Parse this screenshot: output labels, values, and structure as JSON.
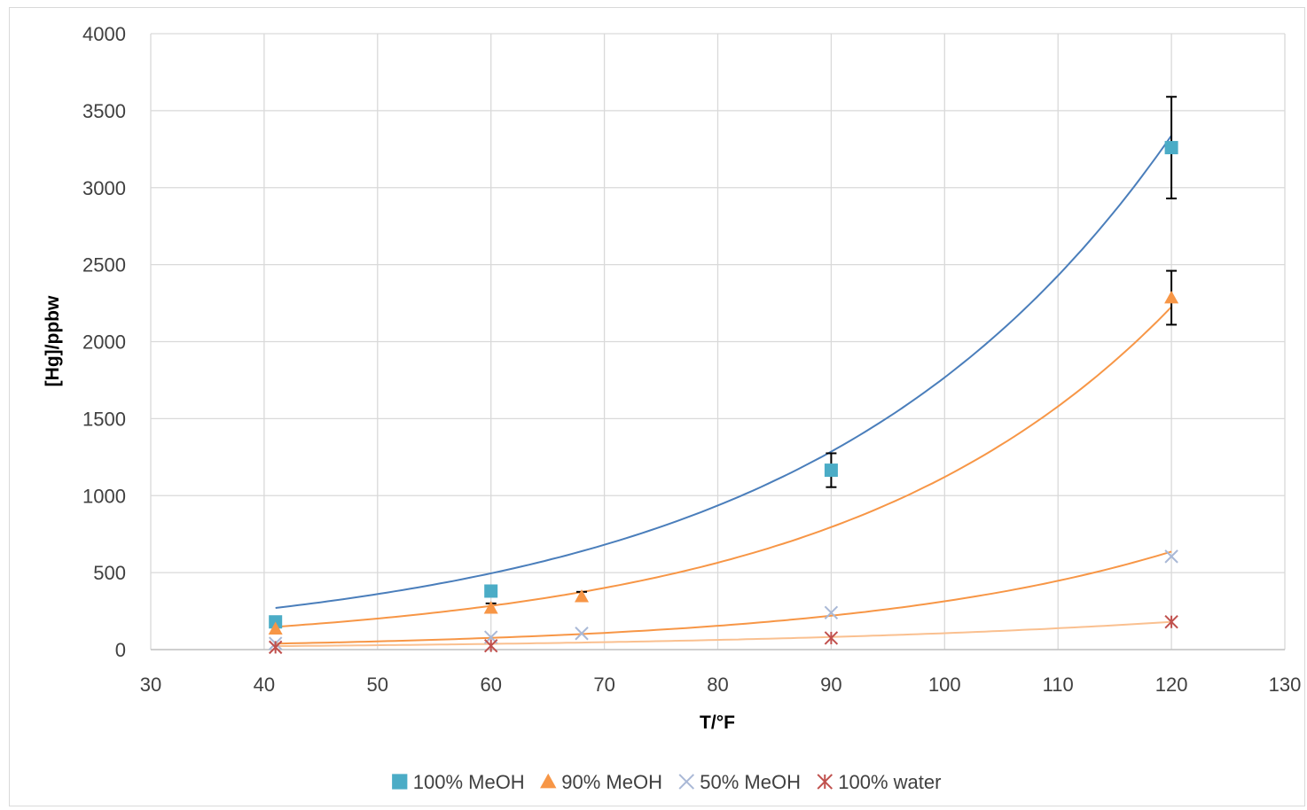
{
  "chart_data": {
    "type": "scatter",
    "title": "",
    "xlabel": "T/°F",
    "ylabel": "[Hg]/ppbw",
    "xlim": [
      30,
      130
    ],
    "ylim": [
      0,
      4000
    ],
    "xticks": [
      30,
      40,
      50,
      60,
      70,
      80,
      90,
      100,
      110,
      120,
      130
    ],
    "yticks": [
      0,
      500,
      1000,
      1500,
      2000,
      2500,
      3000,
      3500,
      4000
    ],
    "grid": true,
    "legend_position": "bottom",
    "series": [
      {
        "name": "100% MeOH",
        "color": "#4bacc6",
        "trend_color": "#4a7ebb",
        "marker": "square",
        "points": [
          {
            "x": 41,
            "y": 180,
            "err": 0
          },
          {
            "x": 60,
            "y": 380,
            "err": 0
          },
          {
            "x": 90,
            "y": 1165,
            "err": 110
          },
          {
            "x": 120,
            "y": 3260,
            "err": 330
          }
        ],
        "trend": {
          "a": 73.5,
          "b": 0.0318
        }
      },
      {
        "name": "90% MeOH",
        "color": "#f79646",
        "trend_color": "#f79646",
        "marker": "triangle",
        "points": [
          {
            "x": 41,
            "y": 135,
            "err": 0
          },
          {
            "x": 60,
            "y": 270,
            "err": 30
          },
          {
            "x": 68,
            "y": 345,
            "err": 30
          },
          {
            "x": 120,
            "y": 2285,
            "err": 175
          }
        ],
        "trend": {
          "a": 36.3,
          "b": 0.0343
        }
      },
      {
        "name": "50% MeOH",
        "color": "#a9b8d6",
        "trend_color": "#f79646",
        "marker": "x",
        "points": [
          {
            "x": 41,
            "y": 40,
            "err": 0
          },
          {
            "x": 60,
            "y": 80,
            "err": 0
          },
          {
            "x": 68,
            "y": 105,
            "err": 0
          },
          {
            "x": 90,
            "y": 240,
            "err": 0
          },
          {
            "x": 120,
            "y": 605,
            "err": 0
          }
        ],
        "trend": {
          "a": 9.1,
          "b": 0.0354
        }
      },
      {
        "name": "100% water",
        "color": "#c0504d",
        "trend_color": "#fac090",
        "marker": "asterisk",
        "points": [
          {
            "x": 41,
            "y": 15,
            "err": 0
          },
          {
            "x": 60,
            "y": 25,
            "err": 0
          },
          {
            "x": 90,
            "y": 75,
            "err": 0
          },
          {
            "x": 120,
            "y": 180,
            "err": 0
          }
        ],
        "trend": {
          "a": 7.6,
          "b": 0.0264
        }
      }
    ]
  }
}
